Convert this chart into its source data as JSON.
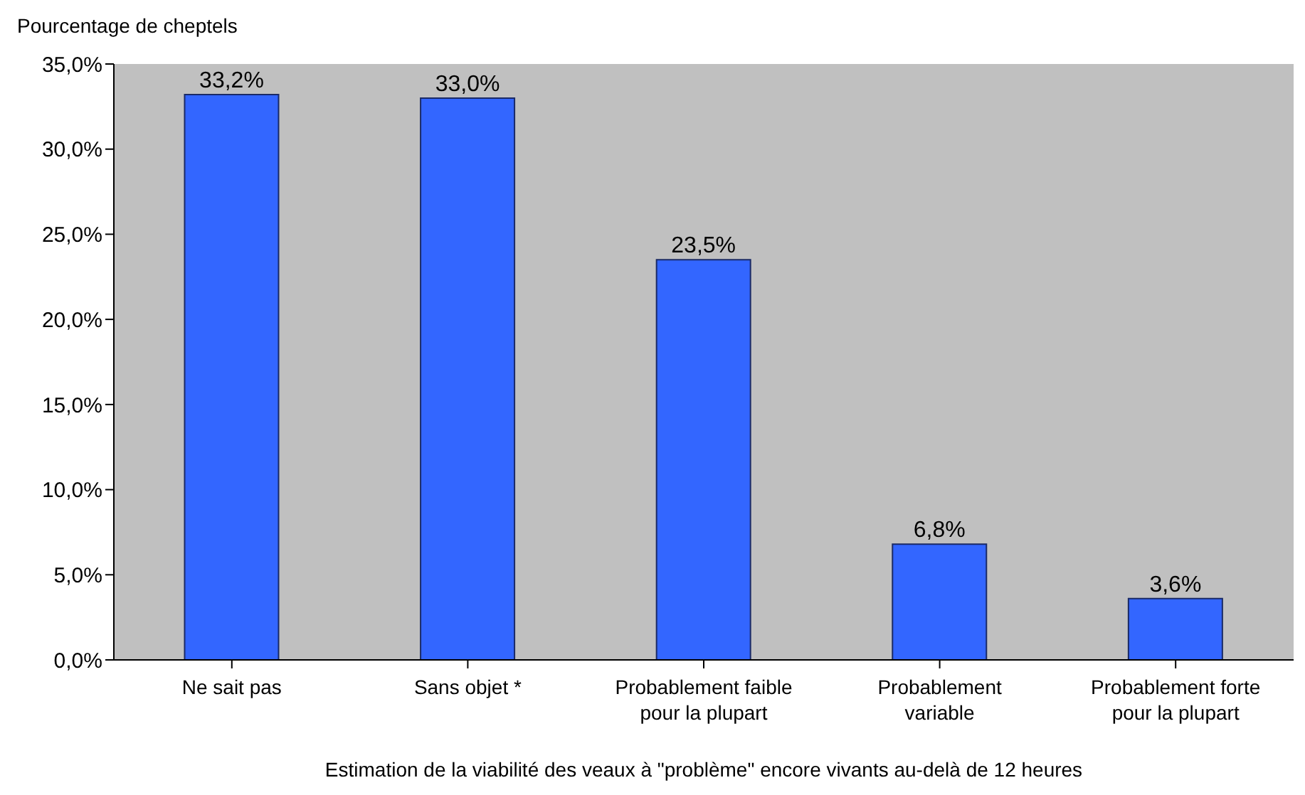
{
  "chart_data": {
    "type": "bar",
    "ylabel": "Pourcentage de cheptels",
    "xlabel": "Estimation de la viabilité des veaux à \"problème\" encore vivants au-delà de 12 heures",
    "categories": [
      "Ne sait pas",
      "Sans objet *",
      "Probablement faible pour la plupart",
      "Probablement variable",
      "Probablement forte pour la plupart"
    ],
    "values": [
      33.2,
      33.0,
      23.5,
      6.8,
      3.6
    ],
    "color": "#3366ff",
    "value_labels": [
      "33,2%",
      "33,0%",
      "23,5%",
      "6,8%",
      "3,6%"
    ],
    "ylim": [
      0,
      35
    ],
    "yticks": [
      {
        "value": 0,
        "label": "0,0%"
      },
      {
        "value": 5,
        "label": "5,0%"
      },
      {
        "value": 10,
        "label": "10,0%"
      },
      {
        "value": 15,
        "label": "15,0%"
      },
      {
        "value": 20,
        "label": "20,0%"
      },
      {
        "value": 25,
        "label": "25,0%"
      },
      {
        "value": 30,
        "label": "30,0%"
      },
      {
        "value": 35,
        "label": "35,0%"
      }
    ],
    "grid": false
  }
}
